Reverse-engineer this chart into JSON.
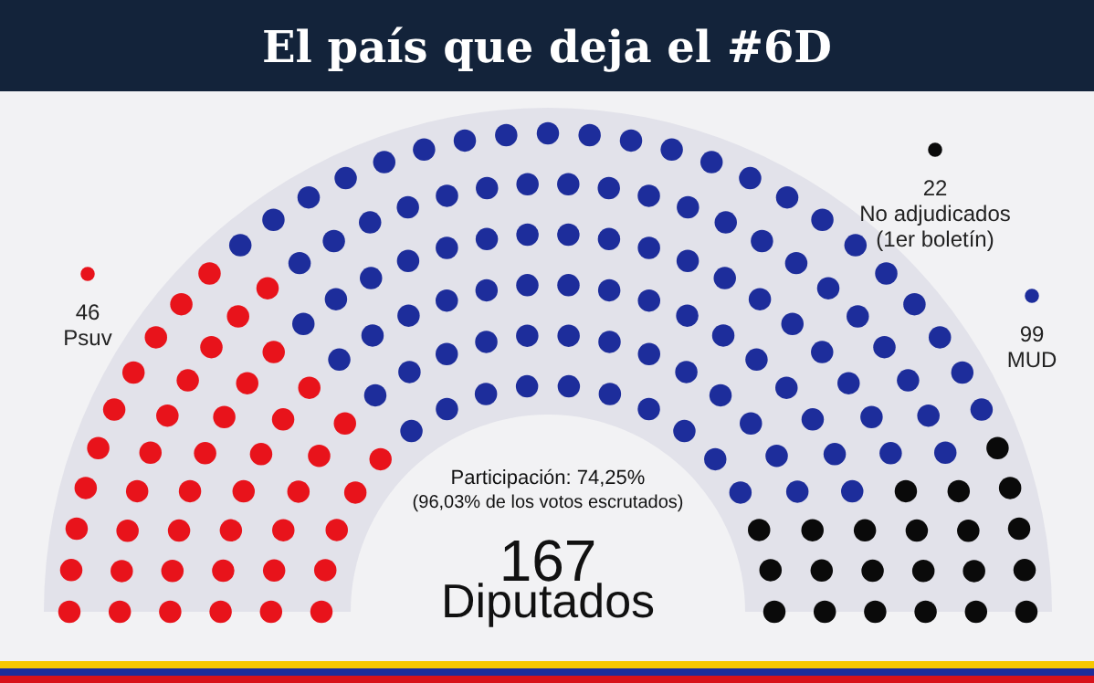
{
  "chart_data": {
    "type": "other",
    "title": "El país que deja el #6D",
    "categories": [
      "Psuv",
      "MUD",
      "No adjudicados (1er boletín)"
    ],
    "values": [
      46,
      99,
      22
    ],
    "colors": [
      "#e8131b",
      "#1d2d9b",
      "#0a0a0a"
    ],
    "data_labels": true,
    "annotations": [
      "Participación: 74,25%",
      "(96,03% de los votos escrutados)",
      "167",
      "Diputados"
    ]
  }
}
